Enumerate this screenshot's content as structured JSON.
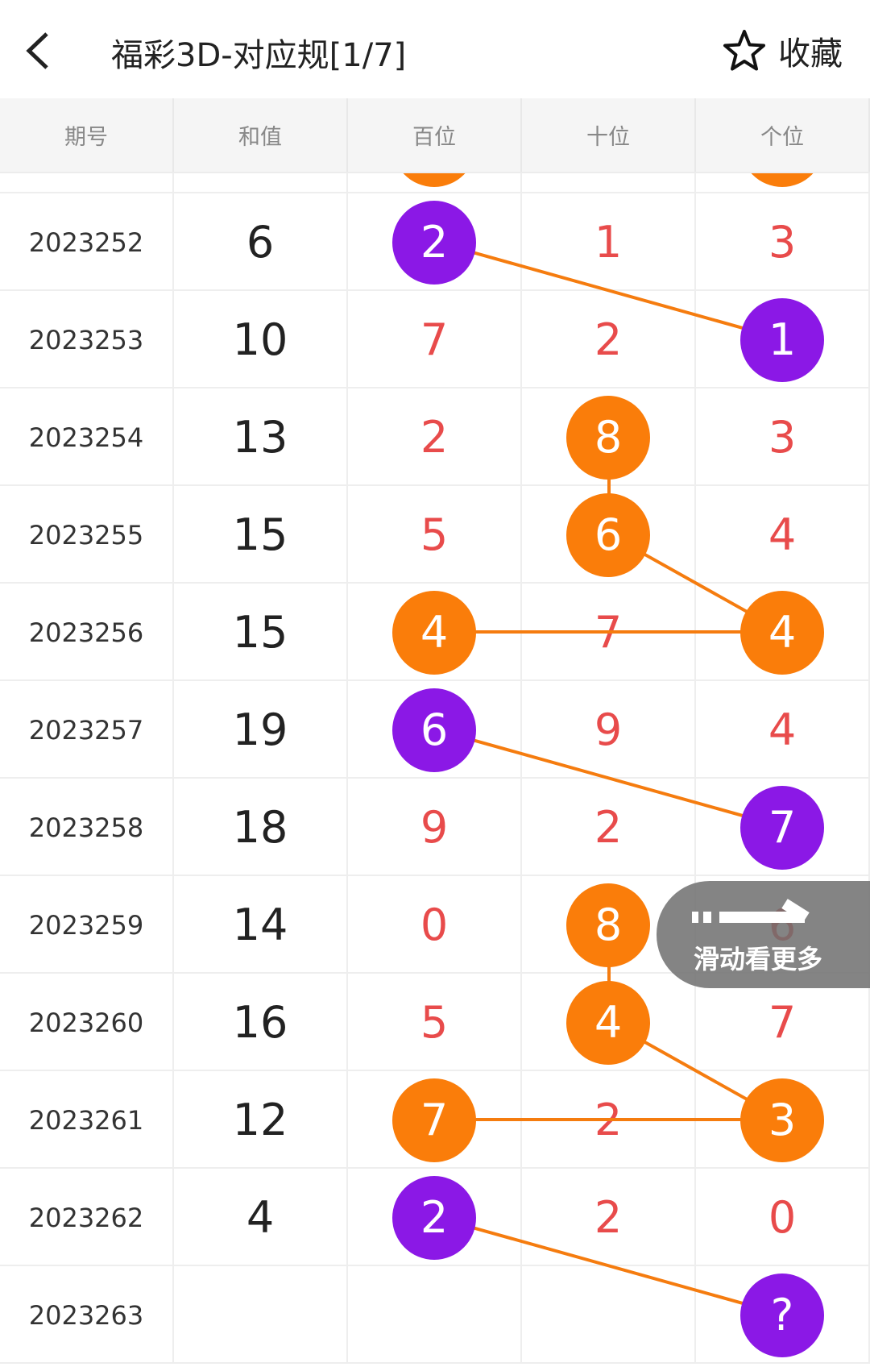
{
  "header": {
    "title": "福彩3D-对应规[1/7]",
    "favorite_label": "收藏"
  },
  "columns": [
    "期号",
    "和值",
    "百位",
    "十位",
    "个位"
  ],
  "colors": {
    "orange": "#fa7d0a",
    "purple": "#8b18e6",
    "digit": "#e84b4b",
    "line": "#f57c0f"
  },
  "partial_top_row": {
    "balls": [
      {
        "col": "bai",
        "color": "orange"
      },
      {
        "col": "ge",
        "color": "orange"
      }
    ]
  },
  "rows": [
    {
      "issue": "2023252",
      "sum": "6",
      "bai": "2",
      "shi": "1",
      "ge": "3",
      "ball": {
        "bai": "purple"
      }
    },
    {
      "issue": "2023253",
      "sum": "10",
      "bai": "7",
      "shi": "2",
      "ge": "1",
      "ball": {
        "ge": "purple"
      }
    },
    {
      "issue": "2023254",
      "sum": "13",
      "bai": "2",
      "shi": "8",
      "ge": "3",
      "ball": {
        "shi": "orange"
      }
    },
    {
      "issue": "2023255",
      "sum": "15",
      "bai": "5",
      "shi": "6",
      "ge": "4",
      "ball": {
        "shi": "orange"
      }
    },
    {
      "issue": "2023256",
      "sum": "15",
      "bai": "4",
      "shi": "7",
      "ge": "4",
      "ball": {
        "bai": "orange",
        "ge": "orange"
      }
    },
    {
      "issue": "2023257",
      "sum": "19",
      "bai": "6",
      "shi": "9",
      "ge": "4",
      "ball": {
        "bai": "purple"
      }
    },
    {
      "issue": "2023258",
      "sum": "18",
      "bai": "9",
      "shi": "2",
      "ge": "7",
      "ball": {
        "ge": "purple"
      }
    },
    {
      "issue": "2023259",
      "sum": "14",
      "bai": "0",
      "shi": "8",
      "ge": "6",
      "ball": {
        "shi": "orange"
      }
    },
    {
      "issue": "2023260",
      "sum": "16",
      "bai": "5",
      "shi": "4",
      "ge": "7",
      "ball": {
        "shi": "orange"
      }
    },
    {
      "issue": "2023261",
      "sum": "12",
      "bai": "7",
      "shi": "2",
      "ge": "3",
      "ball": {
        "bai": "orange",
        "ge": "orange"
      }
    },
    {
      "issue": "2023262",
      "sum": "4",
      "bai": "2",
      "shi": "2",
      "ge": "0",
      "ball": {
        "bai": "purple"
      }
    },
    {
      "issue": "2023263",
      "sum": "",
      "bai": "",
      "shi": "",
      "ge": "?",
      "ball": {
        "ge": "purple"
      }
    }
  ],
  "links": [
    [
      0,
      "bai",
      1,
      "ge"
    ],
    [
      2,
      "shi",
      3,
      "shi"
    ],
    [
      3,
      "shi",
      4,
      "ge"
    ],
    [
      4,
      "bai",
      4,
      "ge"
    ],
    [
      5,
      "bai",
      6,
      "ge"
    ],
    [
      7,
      "shi",
      8,
      "shi"
    ],
    [
      8,
      "shi",
      9,
      "ge"
    ],
    [
      9,
      "bai",
      9,
      "ge"
    ],
    [
      10,
      "bai",
      11,
      "ge"
    ]
  ],
  "swipe_hint": {
    "label": "滑动看更多",
    "icon": "swipe-right-arrow-icon"
  }
}
